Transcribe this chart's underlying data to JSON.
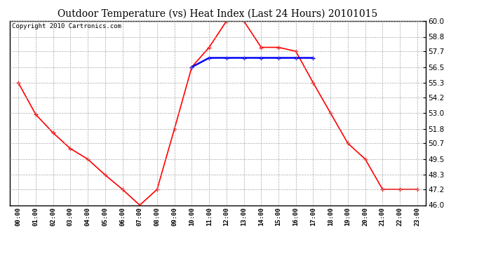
{
  "title": "Outdoor Temperature (vs) Heat Index (Last 24 Hours) 20101015",
  "copyright": "Copyright 2010 Cartronics.com",
  "hours": [
    "00:00",
    "01:00",
    "02:00",
    "03:00",
    "04:00",
    "05:00",
    "06:00",
    "07:00",
    "08:00",
    "09:00",
    "10:00",
    "11:00",
    "12:00",
    "13:00",
    "14:00",
    "15:00",
    "16:00",
    "17:00",
    "18:00",
    "19:00",
    "20:00",
    "21:00",
    "22:00",
    "23:00"
  ],
  "temp": [
    55.3,
    52.9,
    51.5,
    50.3,
    49.5,
    48.3,
    47.2,
    46.0,
    47.2,
    51.8,
    56.5,
    58.0,
    60.0,
    60.0,
    58.0,
    58.0,
    57.7,
    55.3,
    53.0,
    50.7,
    49.5,
    47.2,
    47.2,
    47.2
  ],
  "heat_index": [
    null,
    null,
    null,
    null,
    null,
    null,
    null,
    null,
    null,
    null,
    56.5,
    57.2,
    57.2,
    57.2,
    57.2,
    57.2,
    57.2,
    57.2,
    null,
    null,
    null,
    null,
    null,
    null
  ],
  "temp_color": "#ff0000",
  "heat_index_color": "#0000ff",
  "ylim_min": 46.0,
  "ylim_max": 60.0,
  "yticks": [
    46.0,
    47.2,
    48.3,
    49.5,
    50.7,
    51.8,
    53.0,
    54.2,
    55.3,
    56.5,
    57.7,
    58.8,
    60.0
  ],
  "background_color": "#ffffff",
  "grid_color": "#aaaaaa",
  "title_fontsize": 10,
  "copyright_fontsize": 6.5
}
